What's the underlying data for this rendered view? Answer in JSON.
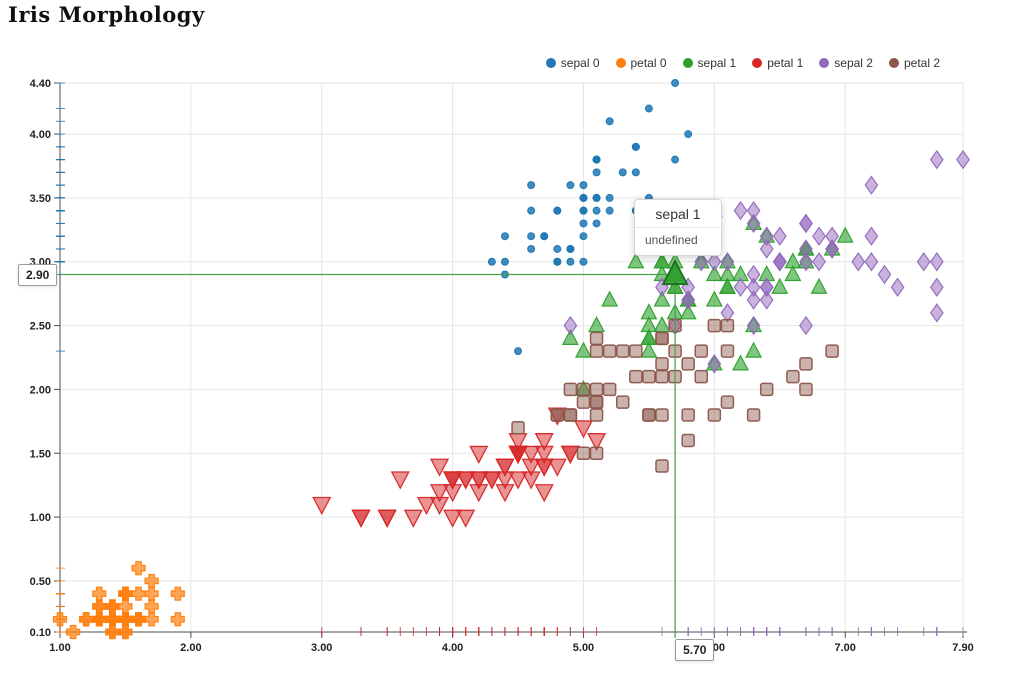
{
  "title": "Iris Morphology",
  "tooltip": {
    "title": "sepal 1",
    "value": "undefined"
  },
  "axis_pointer": {
    "x_value": 5.7,
    "y_value": 2.9,
    "x_label": "5.70",
    "y_label": "2.90",
    "color": "#43a047"
  },
  "chart_data": {
    "type": "scatter",
    "title": "Iris Morphology",
    "xlabel": "",
    "ylabel": "",
    "xlim": [
      1.0,
      7.9
    ],
    "ylim": [
      0.1,
      4.4
    ],
    "x_ticks": [
      1.0,
      2.0,
      3.0,
      4.0,
      5.0,
      6.0,
      7.0,
      7.9
    ],
    "y_ticks": [
      0.1,
      0.5,
      1.0,
      1.5,
      2.0,
      2.5,
      3.0,
      3.5,
      4.0,
      4.4
    ],
    "grid": true,
    "legend_position": "top-right",
    "highlight": {
      "series": "sepal 1",
      "point": [
        5.7,
        2.9
      ]
    },
    "rug": {
      "x_series": [
        "petal 1",
        "sepal 2"
      ],
      "y_series": [
        "sepal 0",
        "petal 0"
      ]
    },
    "series": [
      {
        "name": "sepal 0",
        "symbol": "circle",
        "color": "#1f77b4",
        "points": [
          [
            5.1,
            3.5
          ],
          [
            4.9,
            3.0
          ],
          [
            4.7,
            3.2
          ],
          [
            4.6,
            3.1
          ],
          [
            5.0,
            3.6
          ],
          [
            5.4,
            3.9
          ],
          [
            4.6,
            3.4
          ],
          [
            5.0,
            3.4
          ],
          [
            4.4,
            2.9
          ],
          [
            4.9,
            3.1
          ],
          [
            5.4,
            3.7
          ],
          [
            4.8,
            3.4
          ],
          [
            4.8,
            3.0
          ],
          [
            4.3,
            3.0
          ],
          [
            5.8,
            4.0
          ],
          [
            5.7,
            4.4
          ],
          [
            5.4,
            3.9
          ],
          [
            5.1,
            3.5
          ],
          [
            5.7,
            3.8
          ],
          [
            5.1,
            3.8
          ],
          [
            5.4,
            3.4
          ],
          [
            5.1,
            3.7
          ],
          [
            4.6,
            3.6
          ],
          [
            5.1,
            3.3
          ],
          [
            4.8,
            3.4
          ],
          [
            5.0,
            3.0
          ],
          [
            5.0,
            3.4
          ],
          [
            5.2,
            3.5
          ],
          [
            5.2,
            3.4
          ],
          [
            4.7,
            3.2
          ],
          [
            4.8,
            3.1
          ],
          [
            5.4,
            3.4
          ],
          [
            5.2,
            4.1
          ],
          [
            5.5,
            4.2
          ],
          [
            4.9,
            3.1
          ],
          [
            5.0,
            3.2
          ],
          [
            5.5,
            3.5
          ],
          [
            4.9,
            3.6
          ],
          [
            4.4,
            3.0
          ],
          [
            5.1,
            3.4
          ],
          [
            5.0,
            3.5
          ],
          [
            4.5,
            2.3
          ],
          [
            4.4,
            3.2
          ],
          [
            5.0,
            3.5
          ],
          [
            5.1,
            3.8
          ],
          [
            4.8,
            3.0
          ],
          [
            5.1,
            3.8
          ],
          [
            4.6,
            3.2
          ],
          [
            5.3,
            3.7
          ],
          [
            5.0,
            3.3
          ]
        ]
      },
      {
        "name": "petal 0",
        "symbol": "plus",
        "color": "#ff7f0e",
        "points": [
          [
            1.4,
            0.2
          ],
          [
            1.4,
            0.2
          ],
          [
            1.3,
            0.2
          ],
          [
            1.5,
            0.2
          ],
          [
            1.4,
            0.2
          ],
          [
            1.7,
            0.4
          ],
          [
            1.4,
            0.3
          ],
          [
            1.5,
            0.2
          ],
          [
            1.4,
            0.2
          ],
          [
            1.5,
            0.1
          ],
          [
            1.5,
            0.2
          ],
          [
            1.6,
            0.2
          ],
          [
            1.4,
            0.1
          ],
          [
            1.1,
            0.1
          ],
          [
            1.2,
            0.2
          ],
          [
            1.5,
            0.4
          ],
          [
            1.3,
            0.4
          ],
          [
            1.4,
            0.3
          ],
          [
            1.7,
            0.3
          ],
          [
            1.5,
            0.3
          ],
          [
            1.7,
            0.2
          ],
          [
            1.5,
            0.4
          ],
          [
            1.0,
            0.2
          ],
          [
            1.7,
            0.5
          ],
          [
            1.9,
            0.2
          ],
          [
            1.6,
            0.2
          ],
          [
            1.6,
            0.4
          ],
          [
            1.5,
            0.2
          ],
          [
            1.4,
            0.2
          ],
          [
            1.6,
            0.2
          ],
          [
            1.6,
            0.2
          ],
          [
            1.5,
            0.4
          ],
          [
            1.5,
            0.1
          ],
          [
            1.4,
            0.2
          ],
          [
            1.5,
            0.2
          ],
          [
            1.2,
            0.2
          ],
          [
            1.3,
            0.2
          ],
          [
            1.4,
            0.1
          ],
          [
            1.3,
            0.2
          ],
          [
            1.5,
            0.2
          ],
          [
            1.3,
            0.3
          ],
          [
            1.3,
            0.3
          ],
          [
            1.3,
            0.2
          ],
          [
            1.6,
            0.6
          ],
          [
            1.9,
            0.4
          ],
          [
            1.4,
            0.3
          ],
          [
            1.6,
            0.2
          ],
          [
            1.4,
            0.2
          ],
          [
            1.5,
            0.2
          ],
          [
            1.4,
            0.2
          ]
        ]
      },
      {
        "name": "sepal 1",
        "symbol": "triangle",
        "color": "#2ca02c",
        "points": [
          [
            7.0,
            3.2
          ],
          [
            6.4,
            3.2
          ],
          [
            6.9,
            3.1
          ],
          [
            5.5,
            2.3
          ],
          [
            6.5,
            2.8
          ],
          [
            5.7,
            2.8
          ],
          [
            6.3,
            3.3
          ],
          [
            4.9,
            2.4
          ],
          [
            6.6,
            2.9
          ],
          [
            5.2,
            2.7
          ],
          [
            5.0,
            2.0
          ],
          [
            5.9,
            3.0
          ],
          [
            6.0,
            2.2
          ],
          [
            6.1,
            2.9
          ],
          [
            5.6,
            2.9
          ],
          [
            6.7,
            3.1
          ],
          [
            5.6,
            3.0
          ],
          [
            5.8,
            2.7
          ],
          [
            6.2,
            2.2
          ],
          [
            5.6,
            2.5
          ],
          [
            5.9,
            3.2
          ],
          [
            6.1,
            2.8
          ],
          [
            6.3,
            2.5
          ],
          [
            6.1,
            2.8
          ],
          [
            6.4,
            2.9
          ],
          [
            6.6,
            3.0
          ],
          [
            6.8,
            2.8
          ],
          [
            6.7,
            3.0
          ],
          [
            6.0,
            2.9
          ],
          [
            5.7,
            2.6
          ],
          [
            5.5,
            2.4
          ],
          [
            5.5,
            2.4
          ],
          [
            5.8,
            2.7
          ],
          [
            6.0,
            2.7
          ],
          [
            5.4,
            3.0
          ],
          [
            6.0,
            3.4
          ],
          [
            6.7,
            3.1
          ],
          [
            6.3,
            2.3
          ],
          [
            5.6,
            3.0
          ],
          [
            5.5,
            2.5
          ],
          [
            5.5,
            2.6
          ],
          [
            6.1,
            3.0
          ],
          [
            5.8,
            2.6
          ],
          [
            5.0,
            2.3
          ],
          [
            5.6,
            2.7
          ],
          [
            5.7,
            3.0
          ],
          [
            5.7,
            2.9
          ],
          [
            6.2,
            2.9
          ],
          [
            5.1,
            2.5
          ],
          [
            5.7,
            2.8
          ]
        ]
      },
      {
        "name": "petal 1",
        "symbol": "triangle-down",
        "color": "#d62728",
        "points": [
          [
            4.7,
            1.4
          ],
          [
            4.5,
            1.5
          ],
          [
            4.9,
            1.5
          ],
          [
            4.0,
            1.3
          ],
          [
            4.6,
            1.5
          ],
          [
            4.5,
            1.3
          ],
          [
            4.7,
            1.6
          ],
          [
            3.3,
            1.0
          ],
          [
            4.6,
            1.3
          ],
          [
            3.9,
            1.4
          ],
          [
            3.5,
            1.0
          ],
          [
            4.2,
            1.5
          ],
          [
            4.0,
            1.0
          ],
          [
            4.7,
            1.4
          ],
          [
            3.6,
            1.3
          ],
          [
            4.4,
            1.4
          ],
          [
            4.5,
            1.5
          ],
          [
            4.1,
            1.0
          ],
          [
            4.5,
            1.5
          ],
          [
            3.9,
            1.1
          ],
          [
            4.8,
            1.8
          ],
          [
            4.0,
            1.3
          ],
          [
            4.9,
            1.5
          ],
          [
            4.7,
            1.2
          ],
          [
            4.3,
            1.3
          ],
          [
            4.4,
            1.4
          ],
          [
            4.8,
            1.4
          ],
          [
            5.0,
            1.7
          ],
          [
            4.5,
            1.5
          ],
          [
            3.5,
            1.0
          ],
          [
            3.8,
            1.1
          ],
          [
            3.7,
            1.0
          ],
          [
            3.9,
            1.2
          ],
          [
            5.1,
            1.6
          ],
          [
            4.5,
            1.5
          ],
          [
            4.5,
            1.6
          ],
          [
            4.7,
            1.5
          ],
          [
            4.4,
            1.3
          ],
          [
            4.1,
            1.3
          ],
          [
            4.0,
            1.3
          ],
          [
            4.4,
            1.2
          ],
          [
            4.6,
            1.4
          ],
          [
            4.0,
            1.2
          ],
          [
            3.3,
            1.0
          ],
          [
            4.2,
            1.3
          ],
          [
            4.2,
            1.2
          ],
          [
            4.2,
            1.3
          ],
          [
            4.3,
            1.3
          ],
          [
            3.0,
            1.1
          ],
          [
            4.1,
            1.3
          ]
        ]
      },
      {
        "name": "sepal 2",
        "symbol": "diamond",
        "color": "#9467bd",
        "points": [
          [
            6.3,
            3.3
          ],
          [
            5.8,
            2.7
          ],
          [
            7.1,
            3.0
          ],
          [
            6.3,
            2.9
          ],
          [
            6.5,
            3.0
          ],
          [
            7.6,
            3.0
          ],
          [
            4.9,
            2.5
          ],
          [
            7.3,
            2.9
          ],
          [
            6.7,
            2.5
          ],
          [
            7.2,
            3.6
          ],
          [
            6.5,
            3.2
          ],
          [
            6.4,
            2.7
          ],
          [
            6.8,
            3.0
          ],
          [
            5.7,
            2.5
          ],
          [
            5.8,
            2.8
          ],
          [
            6.4,
            3.2
          ],
          [
            6.5,
            3.0
          ],
          [
            7.7,
            3.8
          ],
          [
            7.7,
            2.6
          ],
          [
            6.0,
            2.2
          ],
          [
            6.9,
            3.2
          ],
          [
            5.6,
            2.8
          ],
          [
            7.7,
            2.8
          ],
          [
            6.3,
            2.7
          ],
          [
            6.7,
            3.3
          ],
          [
            7.2,
            3.2
          ],
          [
            6.2,
            2.8
          ],
          [
            6.1,
            3.0
          ],
          [
            6.4,
            2.8
          ],
          [
            7.2,
            3.0
          ],
          [
            7.4,
            2.8
          ],
          [
            7.9,
            3.8
          ],
          [
            6.4,
            2.8
          ],
          [
            6.3,
            2.8
          ],
          [
            6.1,
            2.6
          ],
          [
            7.7,
            3.0
          ],
          [
            6.3,
            3.4
          ],
          [
            6.4,
            3.1
          ],
          [
            6.0,
            3.0
          ],
          [
            6.9,
            3.1
          ],
          [
            6.7,
            3.1
          ],
          [
            6.9,
            3.1
          ],
          [
            5.8,
            2.7
          ],
          [
            6.8,
            3.2
          ],
          [
            6.7,
            3.3
          ],
          [
            6.7,
            3.0
          ],
          [
            6.3,
            2.5
          ],
          [
            6.5,
            3.0
          ],
          [
            6.2,
            3.4
          ],
          [
            5.9,
            3.0
          ]
        ]
      },
      {
        "name": "petal 2",
        "symbol": "square",
        "color": "#8c564b",
        "points": [
          [
            6.0,
            2.5
          ],
          [
            5.1,
            1.9
          ],
          [
            5.9,
            2.1
          ],
          [
            5.6,
            1.8
          ],
          [
            5.8,
            2.2
          ],
          [
            6.6,
            2.1
          ],
          [
            4.5,
            1.7
          ],
          [
            6.3,
            1.8
          ],
          [
            5.8,
            1.8
          ],
          [
            6.1,
            2.5
          ],
          [
            5.1,
            2.0
          ],
          [
            5.3,
            1.9
          ],
          [
            5.5,
            2.1
          ],
          [
            5.0,
            2.0
          ],
          [
            5.1,
            2.4
          ],
          [
            5.3,
            2.3
          ],
          [
            5.5,
            1.8
          ],
          [
            6.7,
            2.2
          ],
          [
            6.9,
            2.3
          ],
          [
            5.0,
            1.5
          ],
          [
            5.7,
            2.3
          ],
          [
            4.9,
            2.0
          ],
          [
            6.7,
            2.0
          ],
          [
            4.9,
            1.8
          ],
          [
            5.7,
            2.1
          ],
          [
            6.0,
            1.8
          ],
          [
            4.8,
            1.8
          ],
          [
            4.9,
            1.8
          ],
          [
            5.6,
            2.1
          ],
          [
            5.8,
            1.6
          ],
          [
            6.1,
            1.9
          ],
          [
            6.4,
            2.0
          ],
          [
            5.6,
            2.2
          ],
          [
            5.1,
            1.5
          ],
          [
            5.6,
            1.4
          ],
          [
            6.1,
            2.3
          ],
          [
            5.6,
            2.4
          ],
          [
            5.5,
            1.8
          ],
          [
            4.8,
            1.8
          ],
          [
            5.4,
            2.1
          ],
          [
            5.6,
            2.4
          ],
          [
            5.1,
            2.3
          ],
          [
            5.1,
            1.9
          ],
          [
            5.9,
            2.3
          ],
          [
            5.7,
            2.5
          ],
          [
            5.2,
            2.3
          ],
          [
            5.0,
            1.9
          ],
          [
            5.2,
            2.0
          ],
          [
            5.4,
            2.3
          ],
          [
            5.1,
            1.8
          ]
        ]
      }
    ]
  }
}
